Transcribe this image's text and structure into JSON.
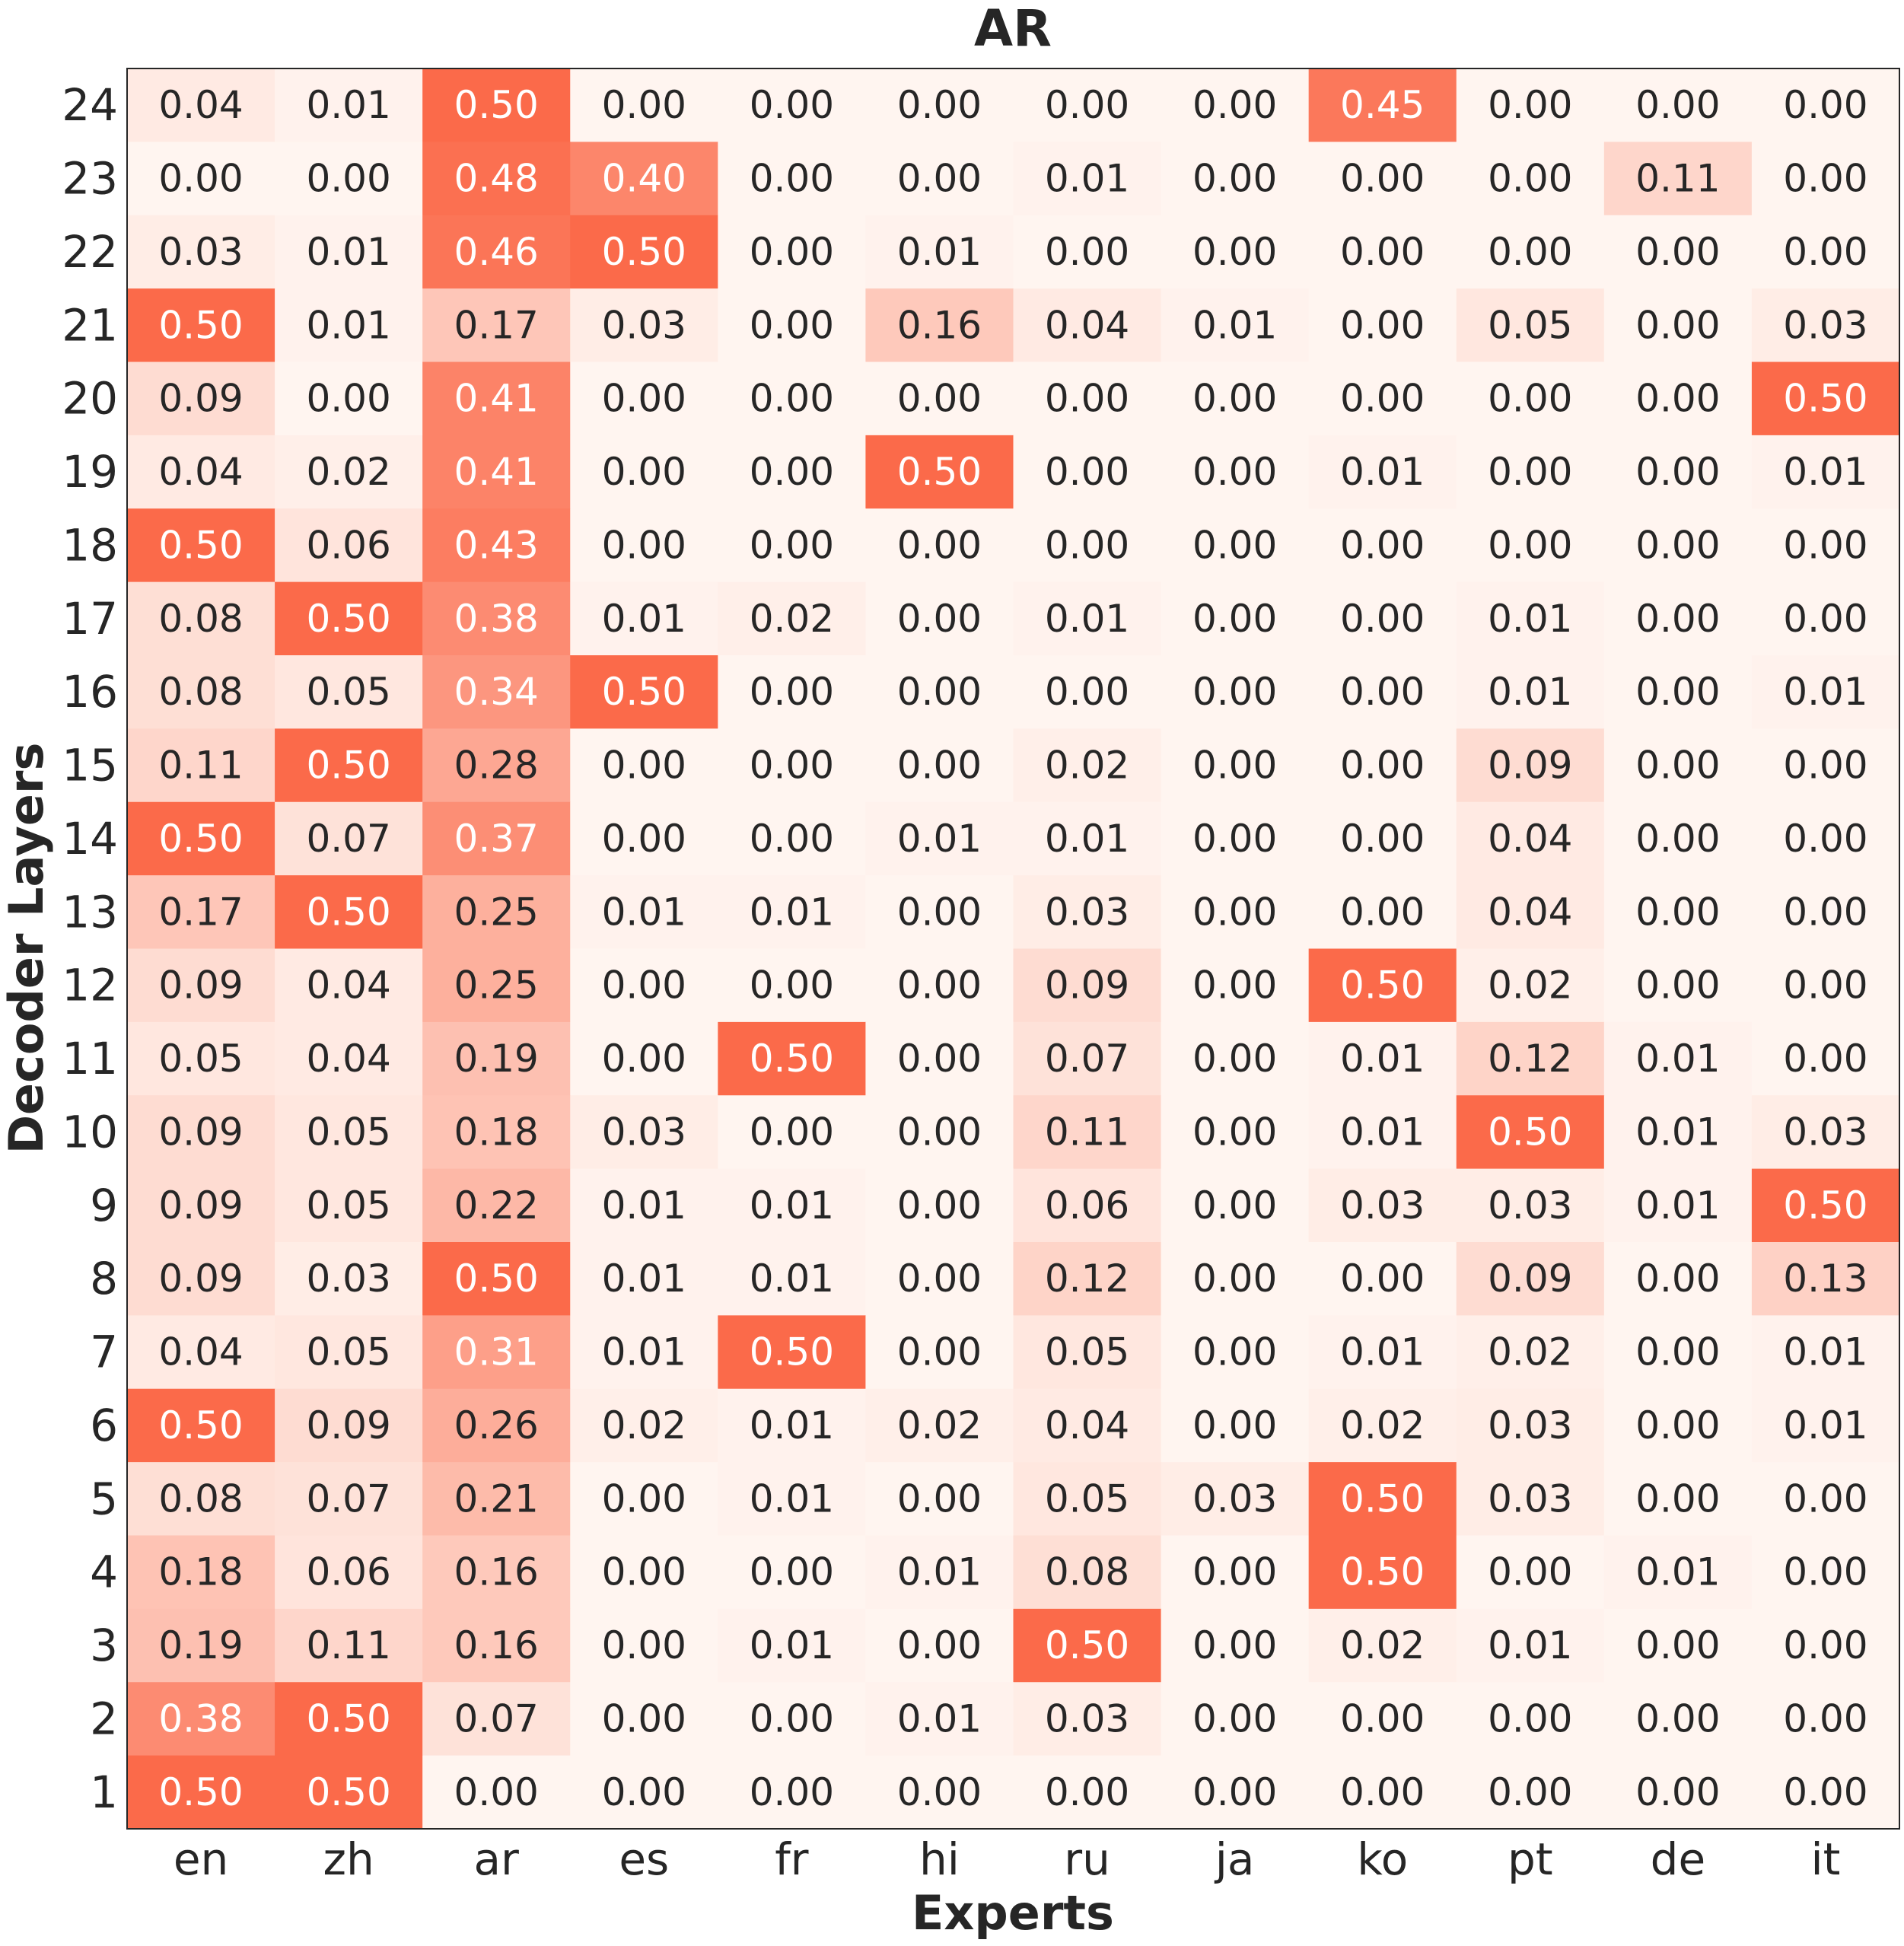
{
  "chart_data": {
    "type": "heatmap",
    "title": "AR",
    "xlabel": "Experts",
    "ylabel": "Decoder Layers",
    "x_categories": [
      "en",
      "zh",
      "ar",
      "es",
      "fr",
      "hi",
      "ru",
      "ja",
      "ko",
      "pt",
      "de",
      "it"
    ],
    "y_categories": [
      "24",
      "23",
      "22",
      "21",
      "20",
      "19",
      "18",
      "17",
      "16",
      "15",
      "14",
      "13",
      "12",
      "11",
      "10",
      "9",
      "8",
      "7",
      "6",
      "5",
      "4",
      "3",
      "2",
      "1"
    ],
    "values": [
      [
        "0.04",
        "0.01",
        "0.50",
        "0.00",
        "0.00",
        "0.00",
        "0.00",
        "0.00",
        "0.45",
        "0.00",
        "0.00",
        "0.00"
      ],
      [
        "0.00",
        "0.00",
        "0.48",
        "0.40",
        "0.00",
        "0.00",
        "0.01",
        "0.00",
        "0.00",
        "0.00",
        "0.11",
        "0.00"
      ],
      [
        "0.03",
        "0.01",
        "0.46",
        "0.50",
        "0.00",
        "0.01",
        "0.00",
        "0.00",
        "0.00",
        "0.00",
        "0.00",
        "0.00"
      ],
      [
        "0.50",
        "0.01",
        "0.17",
        "0.03",
        "0.00",
        "0.16",
        "0.04",
        "0.01",
        "0.00",
        "0.05",
        "0.00",
        "0.03"
      ],
      [
        "0.09",
        "0.00",
        "0.41",
        "0.00",
        "0.00",
        "0.00",
        "0.00",
        "0.00",
        "0.00",
        "0.00",
        "0.00",
        "0.50"
      ],
      [
        "0.04",
        "0.02",
        "0.41",
        "0.00",
        "0.00",
        "0.50",
        "0.00",
        "0.00",
        "0.01",
        "0.00",
        "0.00",
        "0.01"
      ],
      [
        "0.50",
        "0.06",
        "0.43",
        "0.00",
        "0.00",
        "0.00",
        "0.00",
        "0.00",
        "0.00",
        "0.00",
        "0.00",
        "0.00"
      ],
      [
        "0.08",
        "0.50",
        "0.38",
        "0.01",
        "0.02",
        "0.00",
        "0.01",
        "0.00",
        "0.00",
        "0.01",
        "0.00",
        "0.00"
      ],
      [
        "0.08",
        "0.05",
        "0.34",
        "0.50",
        "0.00",
        "0.00",
        "0.00",
        "0.00",
        "0.00",
        "0.01",
        "0.00",
        "0.01"
      ],
      [
        "0.11",
        "0.50",
        "0.28",
        "0.00",
        "0.00",
        "0.00",
        "0.02",
        "0.00",
        "0.00",
        "0.09",
        "0.00",
        "0.00"
      ],
      [
        "0.50",
        "0.07",
        "0.37",
        "0.00",
        "0.00",
        "0.01",
        "0.01",
        "0.00",
        "0.00",
        "0.04",
        "0.00",
        "0.00"
      ],
      [
        "0.17",
        "0.50",
        "0.25",
        "0.01",
        "0.01",
        "0.00",
        "0.03",
        "0.00",
        "0.00",
        "0.04",
        "0.00",
        "0.00"
      ],
      [
        "0.09",
        "0.04",
        "0.25",
        "0.00",
        "0.00",
        "0.00",
        "0.09",
        "0.00",
        "0.50",
        "0.02",
        "0.00",
        "0.00"
      ],
      [
        "0.05",
        "0.04",
        "0.19",
        "0.00",
        "0.50",
        "0.00",
        "0.07",
        "0.00",
        "0.01",
        "0.12",
        "0.01",
        "0.00"
      ],
      [
        "0.09",
        "0.05",
        "0.18",
        "0.03",
        "0.00",
        "0.00",
        "0.11",
        "0.00",
        "0.01",
        "0.50",
        "0.01",
        "0.03"
      ],
      [
        "0.09",
        "0.05",
        "0.22",
        "0.01",
        "0.01",
        "0.00",
        "0.06",
        "0.00",
        "0.03",
        "0.03",
        "0.01",
        "0.50"
      ],
      [
        "0.09",
        "0.03",
        "0.50",
        "0.01",
        "0.01",
        "0.00",
        "0.12",
        "0.00",
        "0.00",
        "0.09",
        "0.00",
        "0.13"
      ],
      [
        "0.04",
        "0.05",
        "0.31",
        "0.01",
        "0.50",
        "0.00",
        "0.05",
        "0.00",
        "0.01",
        "0.02",
        "0.00",
        "0.01"
      ],
      [
        "0.50",
        "0.09",
        "0.26",
        "0.02",
        "0.01",
        "0.02",
        "0.04",
        "0.00",
        "0.02",
        "0.03",
        "0.00",
        "0.01"
      ],
      [
        "0.08",
        "0.07",
        "0.21",
        "0.00",
        "0.01",
        "0.00",
        "0.05",
        "0.03",
        "0.50",
        "0.03",
        "0.00",
        "0.00"
      ],
      [
        "0.18",
        "0.06",
        "0.16",
        "0.00",
        "0.00",
        "0.01",
        "0.08",
        "0.00",
        "0.50",
        "0.00",
        "0.01",
        "0.00"
      ],
      [
        "0.19",
        "0.11",
        "0.16",
        "0.00",
        "0.01",
        "0.00",
        "0.50",
        "0.00",
        "0.02",
        "0.01",
        "0.00",
        "0.00"
      ],
      [
        "0.38",
        "0.50",
        "0.07",
        "0.00",
        "0.00",
        "0.01",
        "0.03",
        "0.00",
        "0.00",
        "0.00",
        "0.00",
        "0.00"
      ],
      [
        "0.50",
        "0.50",
        "0.00",
        "0.00",
        "0.00",
        "0.00",
        "0.00",
        "0.00",
        "0.00",
        "0.00",
        "0.00",
        "0.00"
      ]
    ],
    "color_range": [
      0,
      0.5
    ],
    "colormap": [
      "#fff5f0",
      "#fb6a4a"
    ],
    "grid": false,
    "legend": "none"
  }
}
